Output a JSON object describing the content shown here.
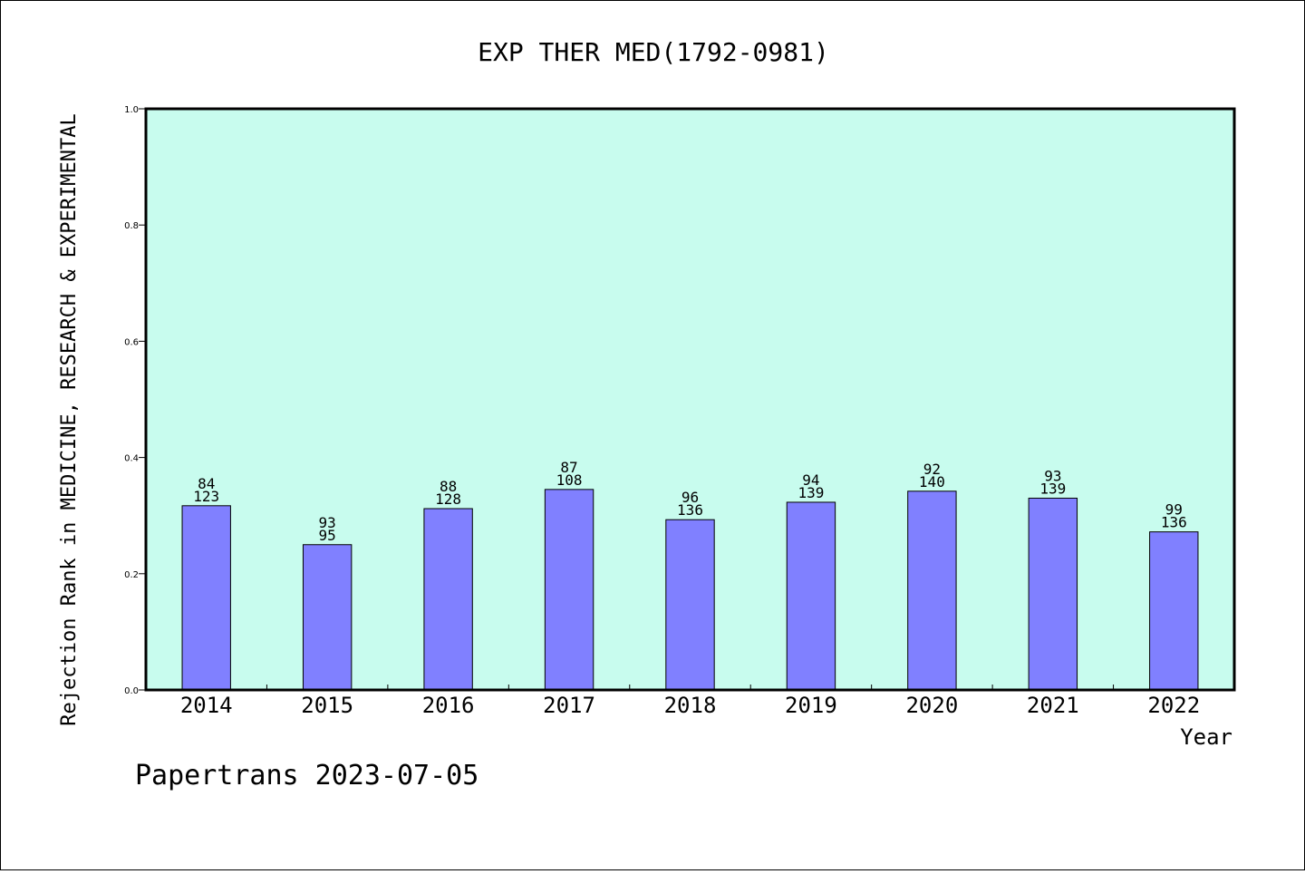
{
  "chart_data": {
    "type": "bar",
    "title": "EXP THER MED(1792-0981)",
    "xlabel": "Year",
    "ylabel": "Rejection Rank in MEDICINE, RESEARCH & EXPERIMENTAL",
    "categories": [
      "2014",
      "2015",
      "2016",
      "2017",
      "2018",
      "2019",
      "2020",
      "2021",
      "2022"
    ],
    "values": [
      0.317,
      0.25,
      0.312,
      0.345,
      0.293,
      0.323,
      0.342,
      0.33,
      0.272
    ],
    "bar_labels_top": [
      "84",
      "93",
      "88",
      "87",
      "96",
      "94",
      "92",
      "93",
      "99"
    ],
    "bar_labels_bottom": [
      "123",
      "95",
      "128",
      "108",
      "136",
      "139",
      "140",
      "139",
      "136"
    ],
    "ylim": [
      0,
      1.0
    ],
    "yticks": [
      "0.0",
      "0.2",
      "0.4",
      "0.6",
      "0.8",
      "1.0"
    ],
    "grid": false,
    "colors": {
      "plot_background": "#c8fcee",
      "bar_fill": "#8080ff",
      "bar_stroke": "#000000"
    }
  },
  "footer": "Papertrans 2023-07-05"
}
